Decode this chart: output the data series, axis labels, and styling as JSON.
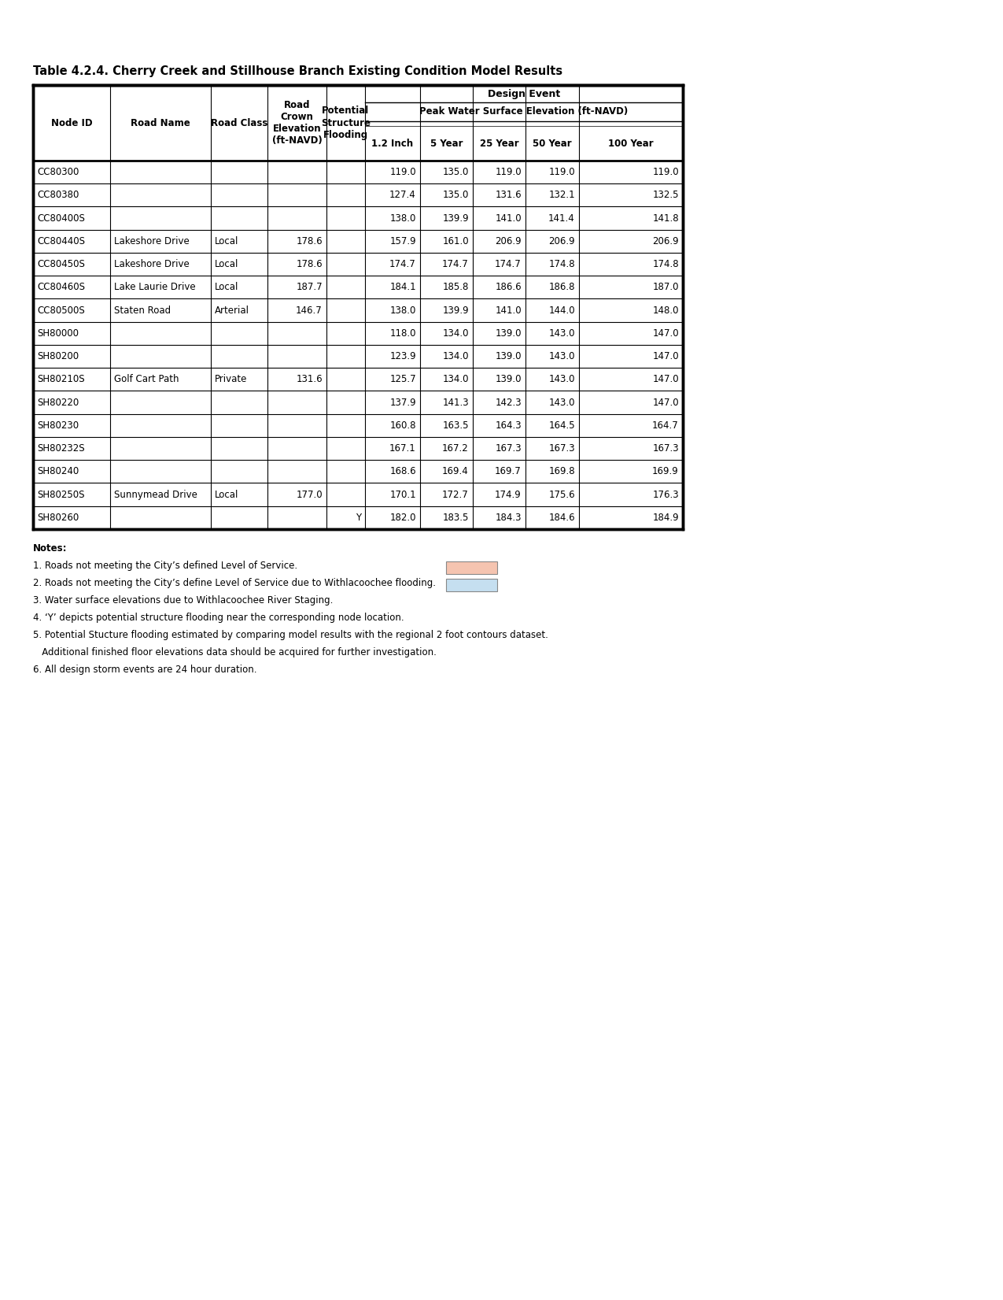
{
  "title": "Table 4.2.4. Cherry Creek and Stillhouse Branch Existing Condition Model Results",
  "col_headers": [
    "Node ID",
    "Road Name",
    "Road Class",
    "Road\nCrown\nElevation\n(ft-NAVD)",
    "Potential\nStructure\nFlooding",
    "1.2 Inch",
    "5 Year",
    "25 Year",
    "50 Year",
    "100 Year"
  ],
  "rows": [
    [
      "CC80300",
      "",
      "",
      "",
      "",
      "119.0",
      "135.0",
      "119.0",
      "119.0",
      "119.0"
    ],
    [
      "CC80380",
      "",
      "",
      "",
      "",
      "127.4",
      "135.0",
      "131.6",
      "132.1",
      "132.5"
    ],
    [
      "CC80400S",
      "",
      "",
      "",
      "",
      "138.0",
      "139.9",
      "141.0",
      "141.4",
      "141.8"
    ],
    [
      "CC80440S",
      "Lakeshore Drive",
      "Local",
      "178.6",
      "",
      "157.9",
      "161.0",
      "206.9",
      "206.9",
      "206.9"
    ],
    [
      "CC80450S",
      "Lakeshore Drive",
      "Local",
      "178.6",
      "",
      "174.7",
      "174.7",
      "174.7",
      "174.8",
      "174.8"
    ],
    [
      "CC80460S",
      "Lake Laurie Drive",
      "Local",
      "187.7",
      "",
      "184.1",
      "185.8",
      "186.6",
      "186.8",
      "187.0"
    ],
    [
      "CC80500S",
      "Staten Road",
      "Arterial",
      "146.7",
      "",
      "138.0",
      "139.9",
      "141.0",
      "144.0",
      "148.0"
    ],
    [
      "SH80000",
      "",
      "",
      "",
      "",
      "118.0",
      "134.0",
      "139.0",
      "143.0",
      "147.0"
    ],
    [
      "SH80200",
      "",
      "",
      "",
      "",
      "123.9",
      "134.0",
      "139.0",
      "143.0",
      "147.0"
    ],
    [
      "SH80210S",
      "Golf Cart Path",
      "Private",
      "131.6",
      "",
      "125.7",
      "134.0",
      "139.0",
      "143.0",
      "147.0"
    ],
    [
      "SH80220",
      "",
      "",
      "",
      "",
      "137.9",
      "141.3",
      "142.3",
      "143.0",
      "147.0"
    ],
    [
      "SH80230",
      "",
      "",
      "",
      "",
      "160.8",
      "163.5",
      "164.3",
      "164.5",
      "164.7"
    ],
    [
      "SH80232S",
      "",
      "",
      "",
      "",
      "167.1",
      "167.2",
      "167.3",
      "167.3",
      "167.3"
    ],
    [
      "SH80240",
      "",
      "",
      "",
      "",
      "168.6",
      "169.4",
      "169.7",
      "169.8",
      "169.9"
    ],
    [
      "SH80250S",
      "Sunnymead Drive",
      "Local",
      "177.0",
      "",
      "170.1",
      "172.7",
      "174.9",
      "175.6",
      "176.3"
    ],
    [
      "SH80260",
      "",
      "",
      "",
      "Y",
      "182.0",
      "183.5",
      "184.3",
      "184.6",
      "184.9"
    ]
  ],
  "pink": "#f5c4b0",
  "blue": "#c5dff0",
  "notes": [
    "Notes:",
    "1. Roads not meeting the City’s defined Level of Service.",
    "2. Roads not meeting the City’s define Level of Service due to Withlacoochee flooding.",
    "3. Water surface elevations due to Withlacoochee River Staging.",
    "4. ‘Y’ depicts potential structure flooding near the corresponding node location.",
    "5. Potential Stucture flooding estimated by comparing model results with the regional 2 foot contours dataset.",
    "   Additional finished floor elevations data should be acquired for further investigation.",
    "6. All design storm events are 24 hour duration."
  ]
}
